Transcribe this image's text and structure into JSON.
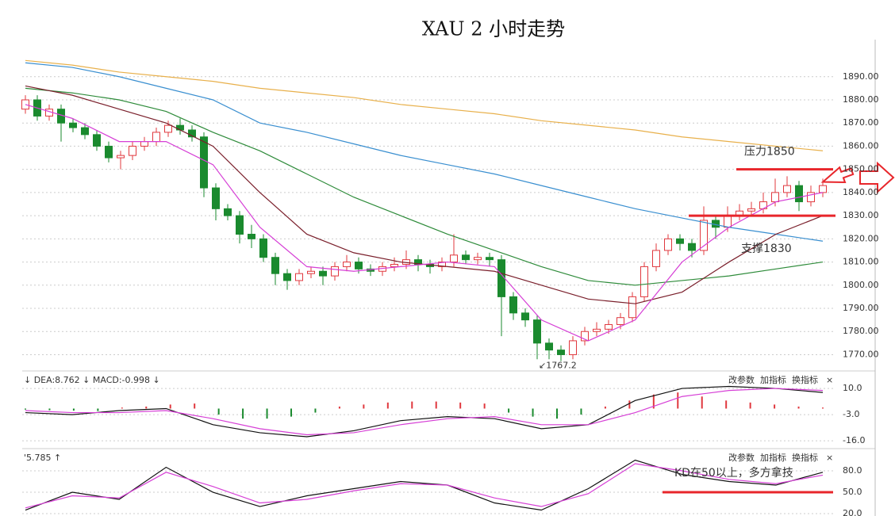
{
  "chart_data": [
    {
      "type": "candlestick",
      "title": "XAU 2 小时走势",
      "open": [
        1876,
        1880,
        1873,
        1876,
        1870,
        1868,
        1865,
        1860,
        1855,
        1856,
        1860,
        1862,
        1866,
        1869,
        1867,
        1864,
        1842,
        1833,
        1830,
        1822,
        1820,
        1812,
        1805,
        1802,
        1805,
        1806,
        1804,
        1808,
        1810,
        1807,
        1806,
        1808,
        1809,
        1811,
        1809,
        1808,
        1810,
        1813,
        1811,
        1812,
        1811,
        1795,
        1788,
        1785,
        1775,
        1772,
        1770,
        1776,
        1780,
        1781,
        1783,
        1786,
        1795,
        1808,
        1815,
        1820,
        1818,
        1815,
        1828,
        1825,
        1830,
        1832,
        1833,
        1836,
        1840,
        1843,
        1836,
        1840
      ],
      "high": [
        1882,
        1882,
        1878,
        1878,
        1872,
        1870,
        1867,
        1862,
        1858,
        1862,
        1864,
        1868,
        1871,
        1872,
        1869,
        1866,
        1844,
        1835,
        1832,
        1826,
        1822,
        1814,
        1807,
        1807,
        1808,
        1808,
        1810,
        1813,
        1812,
        1809,
        1810,
        1812,
        1815,
        1813,
        1811,
        1812,
        1822,
        1815,
        1814,
        1814,
        1813,
        1797,
        1790,
        1787,
        1777,
        1774,
        1778,
        1782,
        1784,
        1785,
        1788,
        1797,
        1810,
        1818,
        1822,
        1822,
        1820,
        1834,
        1830,
        1834,
        1835,
        1836,
        1840,
        1846,
        1847,
        1845,
        1843,
        1846
      ],
      "low": [
        1874,
        1871,
        1871,
        1862,
        1866,
        1863,
        1858,
        1853,
        1850,
        1854,
        1858,
        1860,
        1864,
        1865,
        1862,
        1838,
        1828,
        1828,
        1818,
        1816,
        1810,
        1800,
        1798,
        1800,
        1803,
        1800,
        1802,
        1806,
        1805,
        1804,
        1804,
        1806,
        1807,
        1806,
        1805,
        1806,
        1808,
        1809,
        1809,
        1808,
        1778,
        1785,
        1782,
        1768,
        1768,
        1767.2,
        1768,
        1774,
        1778,
        1779,
        1781,
        1784,
        1793,
        1806,
        1813,
        1815,
        1812,
        1813,
        1820,
        1823,
        1828,
        1830,
        1831,
        1834,
        1838,
        1832,
        1834,
        1838
      ],
      "close": [
        1880,
        1873,
        1876,
        1870,
        1868,
        1865,
        1860,
        1855,
        1856,
        1860,
        1862,
        1866,
        1869,
        1867,
        1864,
        1842,
        1833,
        1830,
        1822,
        1820,
        1812,
        1805,
        1802,
        1805,
        1806,
        1804,
        1808,
        1810,
        1807,
        1806,
        1808,
        1809,
        1811,
        1809,
        1808,
        1810,
        1813,
        1811,
        1812,
        1811,
        1795,
        1788,
        1785,
        1775,
        1772,
        1770,
        1776,
        1780,
        1781,
        1783,
        1786,
        1795,
        1808,
        1815,
        1820,
        1818,
        1815,
        1828,
        1825,
        1830,
        1832,
        1833,
        1836,
        1840,
        1843,
        1836,
        1840,
        1843
      ],
      "up_color": "#e0383e",
      "down_color": "#1a8a2e",
      "overlays": [
        {
          "color": "#e8b04b",
          "values": [
            1897,
            1895,
            1892,
            1890,
            1888,
            1885,
            1883,
            1881,
            1878,
            1876,
            1874,
            1871,
            1869,
            1867,
            1864,
            1862,
            1860,
            1858
          ]
        },
        {
          "color": "#3a8fd0",
          "values": [
            1896,
            1894,
            1890,
            1885,
            1880,
            1870,
            1866,
            1861,
            1856,
            1852,
            1848,
            1843,
            1838,
            1833,
            1829,
            1825,
            1822,
            1819
          ]
        },
        {
          "color": "#2e8b3a",
          "values": [
            1885,
            1883,
            1880,
            1875,
            1866,
            1858,
            1848,
            1838,
            1830,
            1822,
            1815,
            1808,
            1802,
            1800,
            1802,
            1804,
            1807,
            1810
          ]
        },
        {
          "color": "#7a1f2b",
          "values": [
            1886,
            1882,
            1876,
            1870,
            1860,
            1840,
            1822,
            1814,
            1810,
            1808,
            1806,
            1800,
            1794,
            1792,
            1797,
            1810,
            1822,
            1830
          ]
        },
        {
          "color": "#d63fd6",
          "values": [
            1878,
            1872,
            1862,
            1862,
            1852,
            1825,
            1808,
            1806,
            1808,
            1810,
            1808,
            1785,
            1776,
            1785,
            1810,
            1825,
            1836,
            1840
          ]
        }
      ],
      "ylim": [
        1764,
        1906
      ],
      "yticks": [
        {
          "value": 1890,
          "label": "1890.00"
        },
        {
          "value": 1880,
          "label": "1880.00"
        },
        {
          "value": 1870,
          "label": "1870.00"
        },
        {
          "value": 1860,
          "label": "1860.00"
        },
        {
          "value": 1850,
          "label": "1850.00"
        },
        {
          "value": 1840,
          "label": "1840.00"
        },
        {
          "value": 1830,
          "label": "1830.00"
        },
        {
          "value": 1820,
          "label": "1820.00"
        },
        {
          "value": 1810,
          "label": "1810.00"
        },
        {
          "value": 1800,
          "label": "1800.00"
        },
        {
          "value": 1790,
          "label": "1790.00"
        },
        {
          "value": 1780,
          "label": "1780.00"
        },
        {
          "value": 1770,
          "label": "1770.00"
        }
      ],
      "grid": true,
      "levels": [
        {
          "value": 1850,
          "label": "压力1850",
          "color": "#e8262b"
        },
        {
          "value": 1830,
          "label": "支撑1830",
          "color": "#e8262b"
        }
      ],
      "low_label": "↙1767.2"
    },
    {
      "type": "macd",
      "legend_text": "↓ DEA:8.762 ↓ MACD:-0.998 ↓",
      "buttons": [
        "改参数",
        "加指标",
        "换指标",
        "×"
      ],
      "histogram": [
        -0.5,
        -0.8,
        -1,
        -1.2,
        0.5,
        1,
        2,
        2.5,
        -3,
        -5,
        -5,
        -4,
        -2,
        1,
        2,
        3,
        3.5,
        3.5,
        3,
        2.5,
        -2,
        -4,
        -5,
        -3,
        1,
        4,
        7,
        8,
        6,
        4,
        3,
        2,
        1,
        0.5
      ],
      "up_color": "#e0383e",
      "down_color": "#1a8a2e",
      "series": [
        {
          "color": "#111111",
          "values": [
            -2,
            -3,
            -1,
            0,
            -8,
            -12,
            -14,
            -11,
            -6,
            -4,
            -5,
            -10,
            -8,
            4,
            10,
            11,
            10,
            8
          ]
        },
        {
          "color": "#d63fd6",
          "values": [
            -1,
            -2,
            -2,
            -1,
            -5,
            -10,
            -13,
            -12,
            -8,
            -5,
            -4,
            -8,
            -8,
            -2,
            6,
            9,
            10,
            9
          ]
        }
      ],
      "ylim": [
        -19.5,
        17.9
      ],
      "yticks": [
        {
          "value": 10,
          "label": "10.0"
        },
        {
          "value": -3,
          "label": "-3.0"
        },
        {
          "value": -16,
          "label": "-16.0"
        }
      ],
      "grid": true
    },
    {
      "type": "line",
      "legend_text": "'5.785 ↑",
      "buttons": [
        "改参数",
        "加指标",
        "换指标",
        "×"
      ],
      "series": [
        {
          "color": "#111111",
          "values": [
            25,
            50,
            40,
            85,
            50,
            30,
            45,
            55,
            65,
            60,
            35,
            25,
            55,
            95,
            75,
            65,
            60,
            78
          ]
        },
        {
          "color": "#d63fd6",
          "values": [
            28,
            45,
            42,
            78,
            58,
            35,
            40,
            52,
            62,
            60,
            42,
            30,
            48,
            90,
            80,
            68,
            62,
            74
          ]
        }
      ],
      "ylim": [
        16.7,
        108.9
      ],
      "yticks": [
        {
          "value": 80,
          "label": "80.0"
        },
        {
          "value": 50,
          "label": "50.0"
        },
        {
          "value": 20,
          "label": "20.0"
        }
      ],
      "grid": true,
      "levels": [
        {
          "value": 50,
          "label": "KD在50以上，多方拿技",
          "color": "#e8262b"
        }
      ]
    }
  ]
}
